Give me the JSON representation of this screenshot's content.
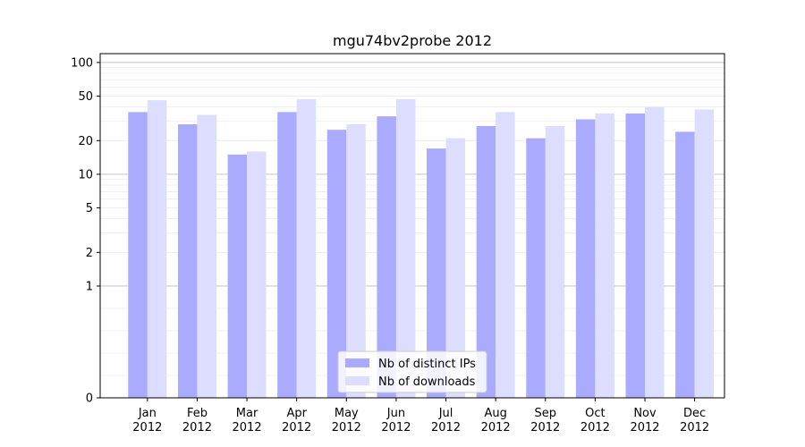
{
  "chart_data": {
    "type": "bar",
    "title": "mgu74bv2probe 2012",
    "xlabel": "",
    "ylabel": "",
    "yscale": "symlog",
    "ylim": [
      0,
      120
    ],
    "yticks": [
      0,
      1,
      2,
      5,
      10,
      20,
      50,
      100
    ],
    "ytick_labels": [
      "0",
      "1",
      "2",
      "5",
      "10",
      "20",
      "50",
      "100"
    ],
    "grid": true,
    "legend_position": "bottom-center",
    "categories": [
      {
        "month": "Jan",
        "year": "2012"
      },
      {
        "month": "Feb",
        "year": "2012"
      },
      {
        "month": "Mar",
        "year": "2012"
      },
      {
        "month": "Apr",
        "year": "2012"
      },
      {
        "month": "May",
        "year": "2012"
      },
      {
        "month": "Jun",
        "year": "2012"
      },
      {
        "month": "Jul",
        "year": "2012"
      },
      {
        "month": "Aug",
        "year": "2012"
      },
      {
        "month": "Sep",
        "year": "2012"
      },
      {
        "month": "Oct",
        "year": "2012"
      },
      {
        "month": "Nov",
        "year": "2012"
      },
      {
        "month": "Dec",
        "year": "2012"
      }
    ],
    "series": [
      {
        "name": "Nb of distinct IPs",
        "color": "#aaaaff",
        "values": [
          36,
          28,
          15,
          36,
          25,
          33,
          17,
          27,
          21,
          31,
          35,
          24
        ]
      },
      {
        "name": "Nb of downloads",
        "color": "#ddddff",
        "values": [
          46,
          34,
          16,
          47,
          28,
          47,
          21,
          36,
          27,
          35,
          40,
          38
        ]
      }
    ]
  }
}
